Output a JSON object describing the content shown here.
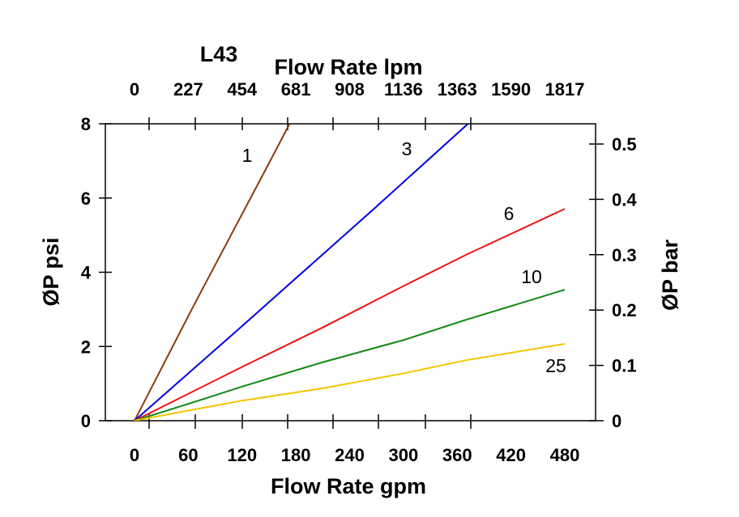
{
  "chart_data": {
    "type": "line",
    "title": "L43",
    "xlabel": "Flow Rate gpm",
    "x2label": "Flow Rate lpm",
    "ylabel": "ØP psi",
    "y2label": "ØP bar",
    "xlim": [
      0,
      480
    ],
    "ylim": [
      0,
      8
    ],
    "y2lim": [
      0,
      0.5
    ],
    "x_ticks": [
      "0",
      "60",
      "120",
      "180",
      "240",
      "300",
      "360",
      "420",
      "480"
    ],
    "x2_ticks": [
      "0",
      "227",
      "454",
      "681",
      "908",
      "1136",
      "1363",
      "1590",
      "1817"
    ],
    "y_ticks": [
      "0",
      "2",
      "4",
      "6",
      "8"
    ],
    "y2_ticks": [
      "0",
      "0.1",
      "0.2",
      "0.3",
      "0.4",
      "0.5"
    ],
    "grid": false,
    "series": [
      {
        "name": "1",
        "color": "#8B3A0F",
        "x": [
          0,
          66,
          147,
          173
        ],
        "y": [
          0,
          3.1,
          6.8,
          8
        ]
      },
      {
        "name": "3",
        "color": "#0000E0",
        "x": [
          0,
          120,
          269,
          372
        ],
        "y": [
          0,
          2.55,
          5.75,
          8
        ]
      },
      {
        "name": "6",
        "color": "#EE1111",
        "x": [
          0,
          120,
          209,
          301,
          370,
          480
        ],
        "y": [
          0,
          1.45,
          2.5,
          3.64,
          4.47,
          5.71
        ]
      },
      {
        "name": "10",
        "color": "#118811",
        "x": [
          0,
          66,
          120,
          209,
          301,
          370,
          480
        ],
        "y": [
          0,
          0.5,
          0.92,
          1.57,
          2.18,
          2.72,
          3.53
        ]
      },
      {
        "name": "25",
        "color": "#F5C400",
        "x": [
          0,
          66,
          120,
          209,
          301,
          370,
          480
        ],
        "y": [
          0,
          0.3,
          0.54,
          0.87,
          1.28,
          1.63,
          2.07
        ]
      }
    ]
  }
}
